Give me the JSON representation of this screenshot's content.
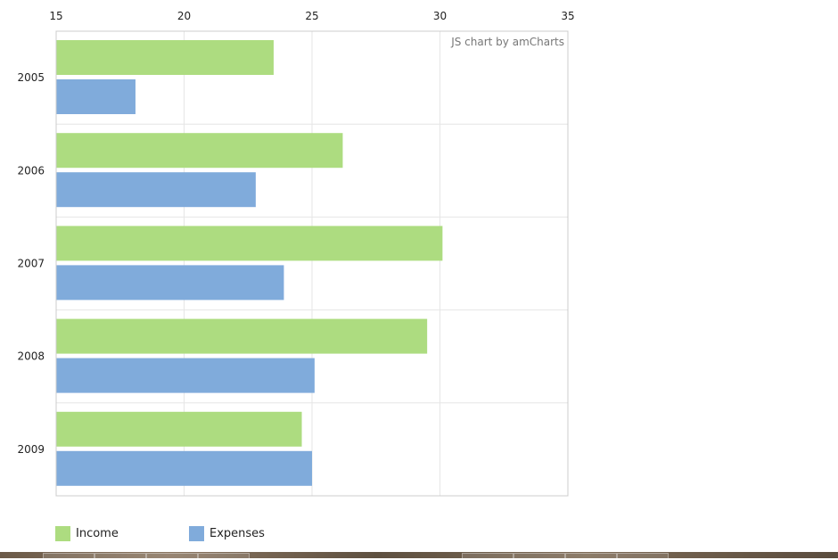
{
  "chart_data": {
    "type": "bar",
    "orientation": "horizontal",
    "categories": [
      "2005",
      "2006",
      "2007",
      "2008",
      "2009"
    ],
    "series": [
      {
        "name": "Income",
        "color": "#addc80",
        "values": [
          23.5,
          26.2,
          30.1,
          29.5,
          24.6
        ]
      },
      {
        "name": "Expenses",
        "color": "#80abdb",
        "values": [
          18.1,
          22.8,
          23.9,
          25.1,
          25.0
        ]
      }
    ],
    "xlim": [
      15,
      35
    ],
    "x_ticks": [
      "15",
      "20",
      "25",
      "30",
      "35"
    ],
    "x_axis_position": "top",
    "grid": true,
    "legend_position": "bottom-left",
    "credit": "JS chart by amCharts"
  }
}
